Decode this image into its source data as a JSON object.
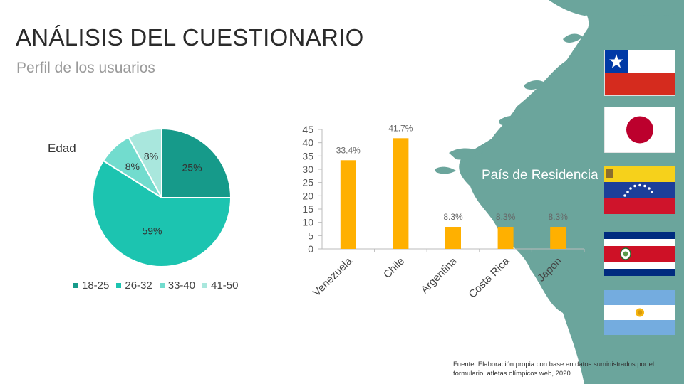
{
  "title": "ANÁLISIS DEL CUESTIONARIO",
  "subtitle": "Perfil de los usuarios",
  "source": "Fuente: Elaboración propia con base en datos suministrados por el formulario, atletas olímpicos web, 2020.",
  "colors": {
    "accent_bg": "#6ba59c",
    "bar": "#ffb000",
    "pie": [
      "#169a8a",
      "#1cc4b0",
      "#72dcce",
      "#a9e7dd"
    ]
  },
  "flags": [
    "chile-flag-icon",
    "japan-flag-icon",
    "venezuela-flag-icon",
    "costa-rica-flag-icon",
    "argentina-flag-icon"
  ],
  "chart_data": [
    {
      "type": "pie",
      "title": "Edad",
      "categories": [
        "18-25",
        "26-32",
        "33-40",
        "41-50"
      ],
      "values": [
        25,
        59,
        8,
        8
      ],
      "data_labels": [
        "25%",
        "59%",
        "8%",
        "8%"
      ],
      "legend": "bottom"
    },
    {
      "type": "bar",
      "title": "País de Residencia",
      "categories": [
        "Venezuela",
        "Chile",
        "Argentina",
        "Costa Rica",
        "Japón"
      ],
      "values": [
        33.4,
        41.7,
        8.3,
        8.3,
        8.3
      ],
      "data_labels": [
        "33.4%",
        "41.7%",
        "8.3%",
        "8.3%",
        "8.3%"
      ],
      "ylim": [
        0,
        45
      ],
      "yticks": [
        0,
        5,
        10,
        15,
        20,
        25,
        30,
        35,
        40,
        45
      ],
      "xlabel": "",
      "ylabel": ""
    }
  ]
}
